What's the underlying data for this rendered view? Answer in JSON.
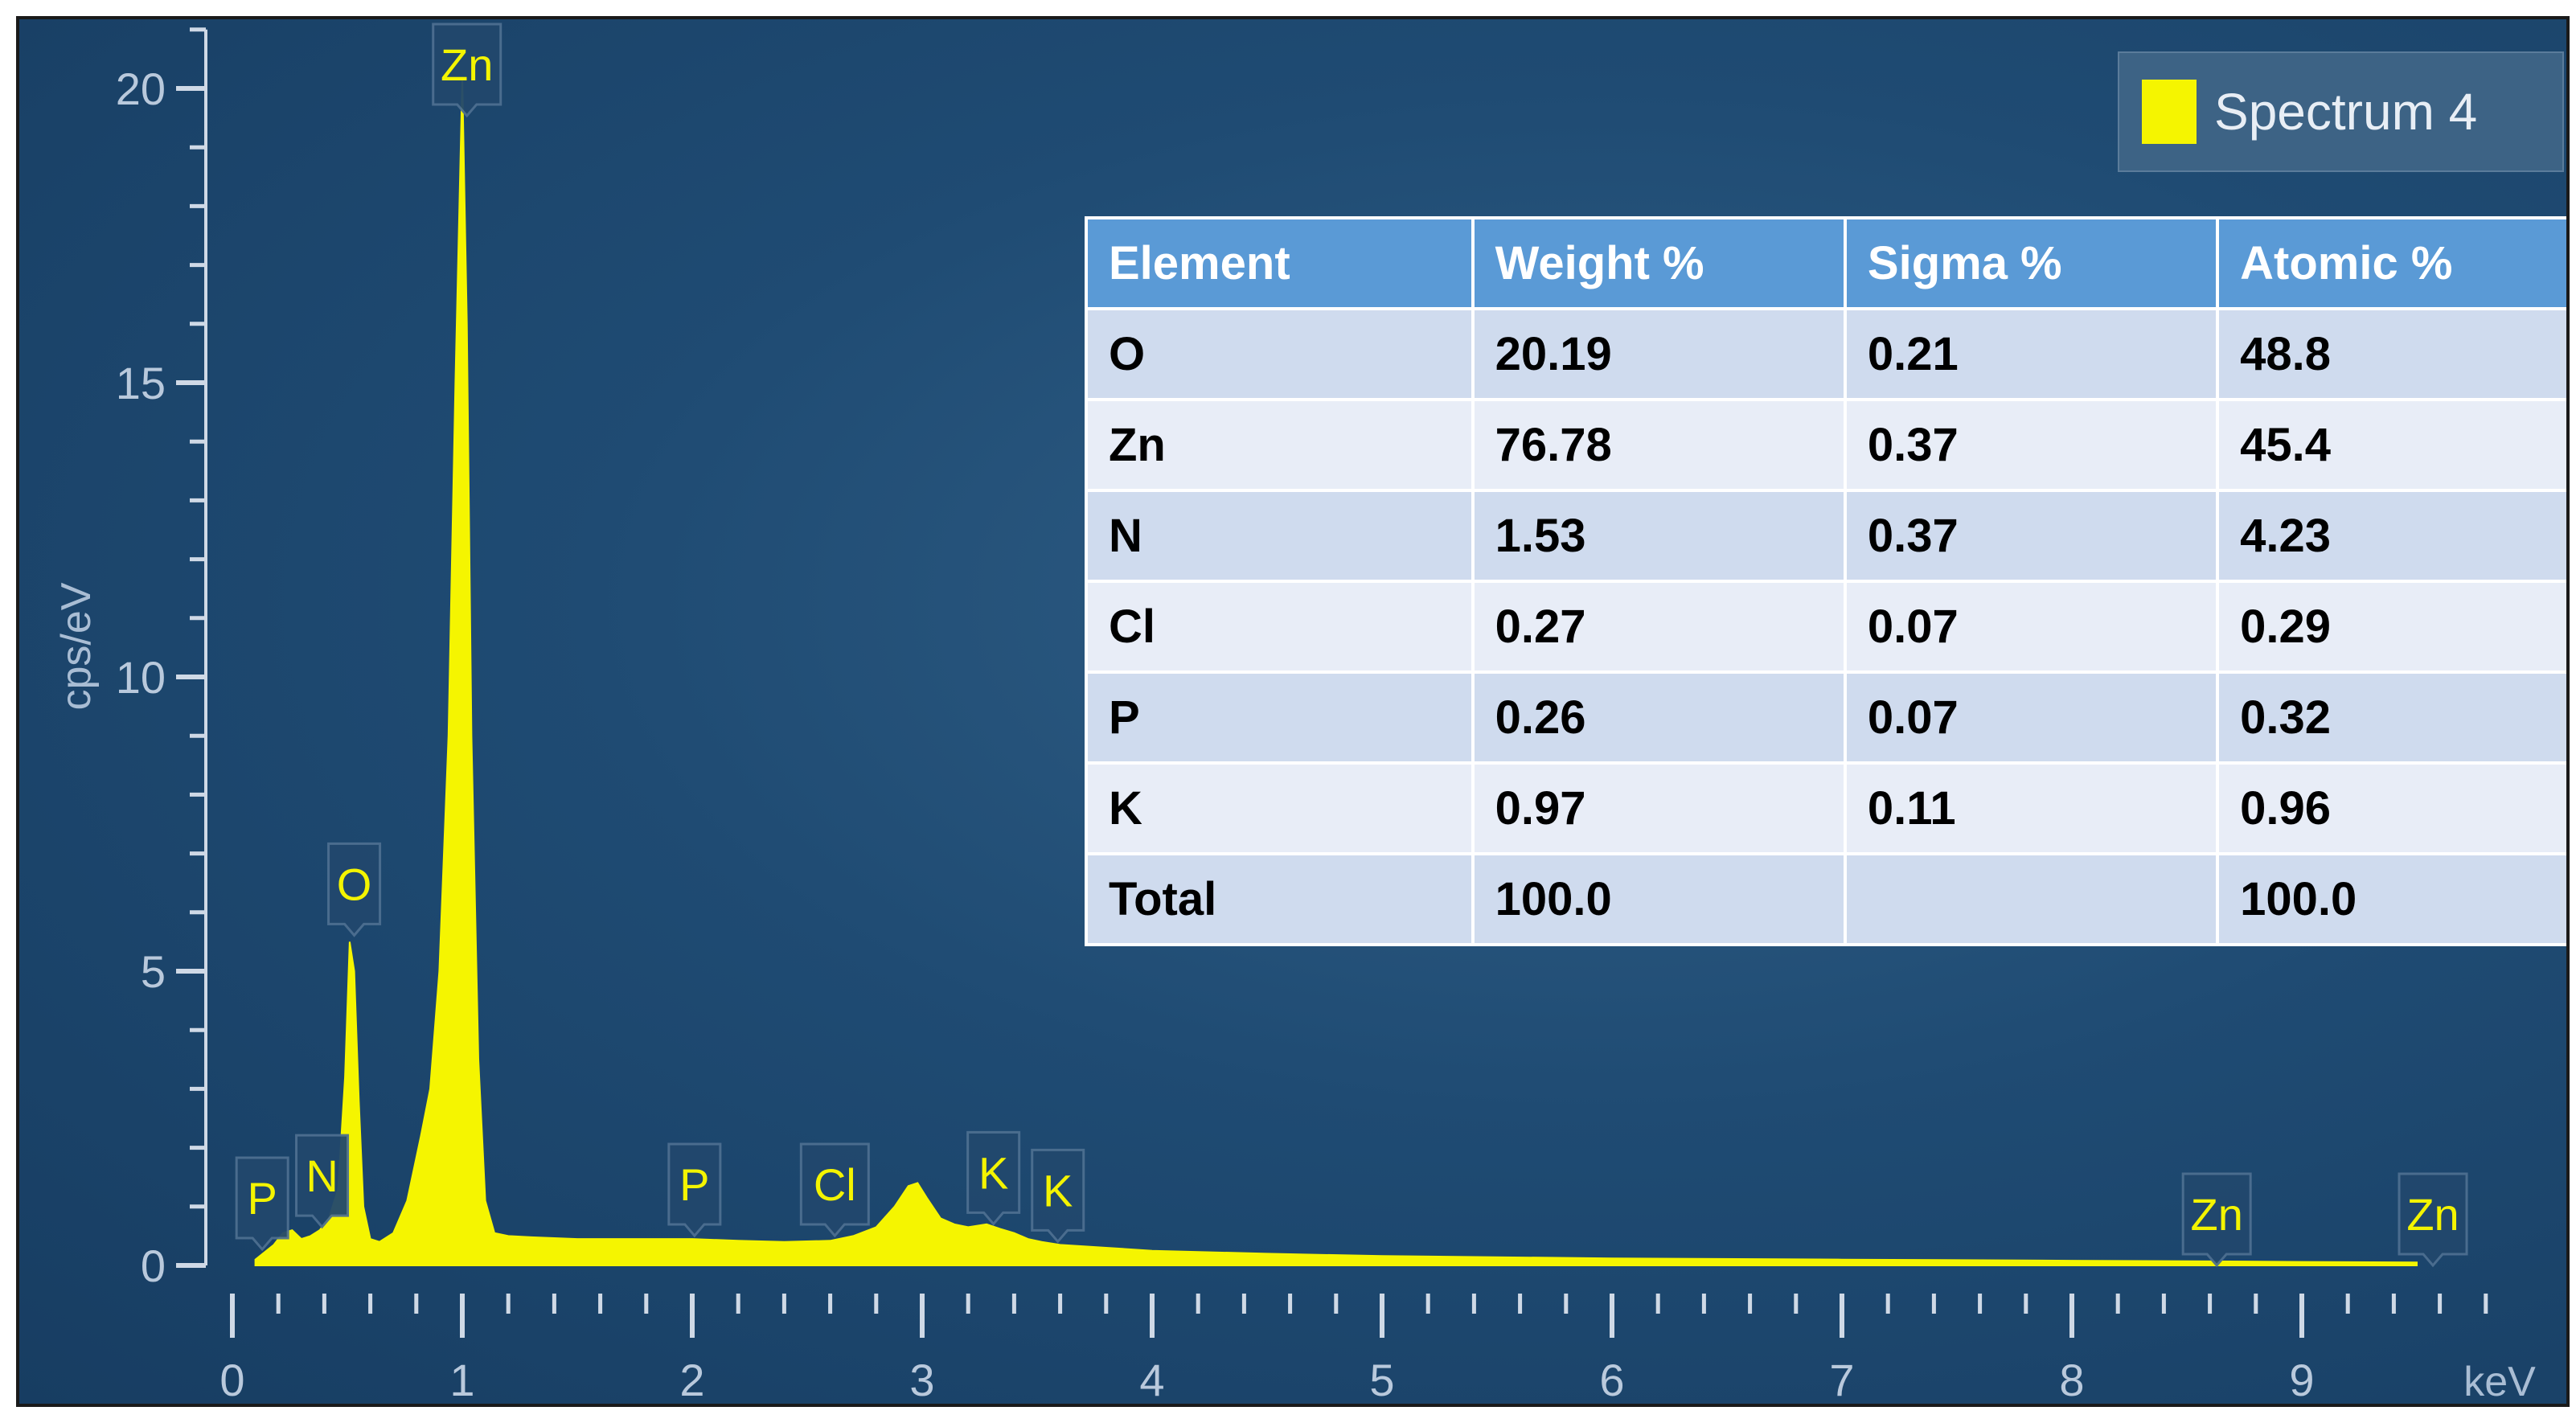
{
  "chart_data": {
    "type": "area",
    "title": "",
    "xlabel": "keV",
    "ylabel": "cps/eV",
    "xlim": [
      0,
      10
    ],
    "ylim": [
      0,
      21
    ],
    "x_ticks": [
      "0",
      "1",
      "2",
      "3",
      "4",
      "5",
      "6",
      "7",
      "8",
      "9"
    ],
    "y_ticks": [
      "0",
      "5",
      "10",
      "15",
      "20"
    ],
    "series": [
      {
        "name": "Spectrum 4",
        "color": "#f5f500",
        "x": [
          0.1,
          0.18,
          0.22,
          0.26,
          0.3,
          0.34,
          0.38,
          0.42,
          0.46,
          0.49,
          0.51,
          0.53,
          0.55,
          0.57,
          0.6,
          0.64,
          0.7,
          0.76,
          0.82,
          0.86,
          0.9,
          0.94,
          0.97,
          1.0,
          1.02,
          1.04,
          1.07,
          1.1,
          1.14,
          1.2,
          1.3,
          1.5,
          1.8,
          2.0,
          2.2,
          2.4,
          2.6,
          2.7,
          2.8,
          2.88,
          2.94,
          2.98,
          3.02,
          3.08,
          3.14,
          3.2,
          3.28,
          3.34,
          3.4,
          3.46,
          3.52,
          3.6,
          3.8,
          4.0,
          4.5,
          5.0,
          6.0,
          7.0,
          8.0,
          8.6,
          9.0,
          9.5
        ],
        "values": [
          0.1,
          0.35,
          0.55,
          0.6,
          0.45,
          0.5,
          0.6,
          0.8,
          1.3,
          3.2,
          5.5,
          5.0,
          2.8,
          1.0,
          0.45,
          0.4,
          0.55,
          1.1,
          2.2,
          3.0,
          5.0,
          9.0,
          15.0,
          20.2,
          16.0,
          9.0,
          3.5,
          1.1,
          0.55,
          0.5,
          0.48,
          0.45,
          0.45,
          0.45,
          0.42,
          0.4,
          0.42,
          0.5,
          0.65,
          1.0,
          1.35,
          1.4,
          1.15,
          0.8,
          0.7,
          0.65,
          0.7,
          0.62,
          0.55,
          0.45,
          0.4,
          0.35,
          0.3,
          0.25,
          0.2,
          0.16,
          0.12,
          0.1,
          0.08,
          0.07,
          0.06,
          0.05
        ]
      }
    ],
    "peak_labels": [
      {
        "label": "P",
        "x": 0.13,
        "y": 0.2
      },
      {
        "label": "N",
        "x": 0.39,
        "y": 0.6
      },
      {
        "label": "O",
        "x": 0.53,
        "y": 5.5
      },
      {
        "label": "Zn",
        "x": 1.02,
        "y": 20.2
      },
      {
        "label": "P",
        "x": 2.01,
        "y": 0.45
      },
      {
        "label": "Cl",
        "x": 2.62,
        "y": 0.45
      },
      {
        "label": "K",
        "x": 3.31,
        "y": 0.65
      },
      {
        "label": "K",
        "x": 3.59,
        "y": 0.35
      },
      {
        "label": "Zn",
        "x": 8.63,
        "y": 0.07
      },
      {
        "label": "Zn",
        "x": 9.57,
        "y": 0.05
      }
    ],
    "legend": {
      "label": "Spectrum 4",
      "position": "top-right"
    },
    "grid": false
  },
  "table": {
    "headers": [
      "Element",
      "Weight %",
      "Sigma %",
      "Atomic %"
    ],
    "rows": [
      [
        "O",
        "20.19",
        "0.21",
        "48.8"
      ],
      [
        "Zn",
        "76.78",
        "0.37",
        "45.4"
      ],
      [
        "N",
        "1.53",
        "0.37",
        "4.23"
      ],
      [
        "Cl",
        "0.27",
        "0.07",
        "0.29"
      ],
      [
        "P",
        "0.26",
        "0.07",
        "0.32"
      ],
      [
        "K",
        "0.97",
        "0.11",
        "0.96"
      ],
      [
        "Total",
        "100.0",
        "",
        "100.0"
      ]
    ]
  }
}
